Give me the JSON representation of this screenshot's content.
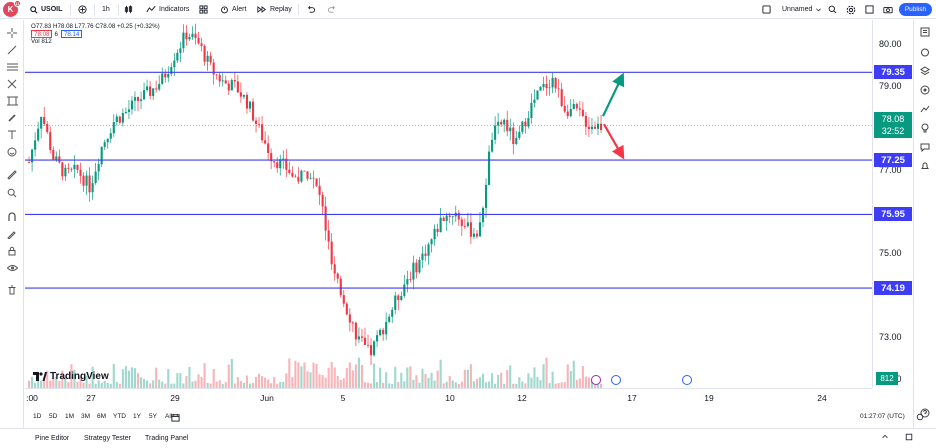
{
  "header": {
    "symbol": "USOIL",
    "interval": "1h",
    "indicators": "Indicators",
    "alert": "Alert",
    "replay": "Replay",
    "layout_name": "Unnamed",
    "publish": "Publish",
    "avatar_letter": "K",
    "notif_count": "11"
  },
  "legend": {
    "ohlc": "O77.83 H78.08 L77.76 C78.08 +0.25 (+0.32%)",
    "sell_price": "78.08",
    "spread": "6",
    "buy_price": "78.14",
    "volume": "Vol  812"
  },
  "price_axis": {
    "ticks": [
      "80.00",
      "79.00",
      "77.00",
      "75.00",
      "73.00",
      "72.00"
    ],
    "levels": [
      "79.35",
      "77.25",
      "75.95",
      "74.19"
    ],
    "last_price": "78.08",
    "countdown": "32:52",
    "volume_label": "812"
  },
  "time_axis": {
    "ticks": [
      ":00",
      "27",
      "29",
      "Jun",
      "5",
      "10",
      "12",
      "17",
      "19",
      "24"
    ]
  },
  "range_bar": {
    "ranges": [
      "1D",
      "5D",
      "1M",
      "3M",
      "6M",
      "YTD",
      "1Y",
      "5Y",
      "All"
    ],
    "clock": "01:27:07 (UTC)"
  },
  "bottom_panel": {
    "tabs": [
      "Pine Editor",
      "Strategy Tester",
      "Trading Panel"
    ]
  },
  "watermark": "TradingView",
  "colors": {
    "up": "#089981",
    "down": "#f23645",
    "level": "#3d3df5",
    "accent": "#2962ff"
  },
  "chart_data": {
    "type": "candlestick",
    "ylim": [
      71.8,
      80.6
    ],
    "horizontal_levels": [
      79.35,
      77.25,
      75.95,
      74.19
    ],
    "x": [
      ":00",
      "27",
      "29",
      "Jun",
      "5",
      "10",
      "12",
      "17",
      "19",
      "24"
    ],
    "close_path": [
      77.2,
      78.4,
      77.3,
      76.9,
      77.0,
      76.6,
      77.6,
      78.2,
      78.4,
      78.7,
      78.9,
      79.2,
      79.8,
      80.3,
      80.0,
      79.4,
      79.1,
      79.0,
      78.6,
      77.9,
      77.3,
      77.1,
      76.8,
      77.0,
      76.3,
      74.5,
      73.8,
      73.0,
      72.6,
      73.2,
      73.8,
      74.4,
      74.8,
      75.3,
      75.9,
      76.0,
      75.6,
      75.5,
      77.8,
      78.2,
      77.6,
      78.4,
      78.9,
      79.2,
      78.5,
      78.4,
      78.1,
      78.08
    ],
    "projection": {
      "up_target": 79.2,
      "down_target": 77.4
    }
  }
}
